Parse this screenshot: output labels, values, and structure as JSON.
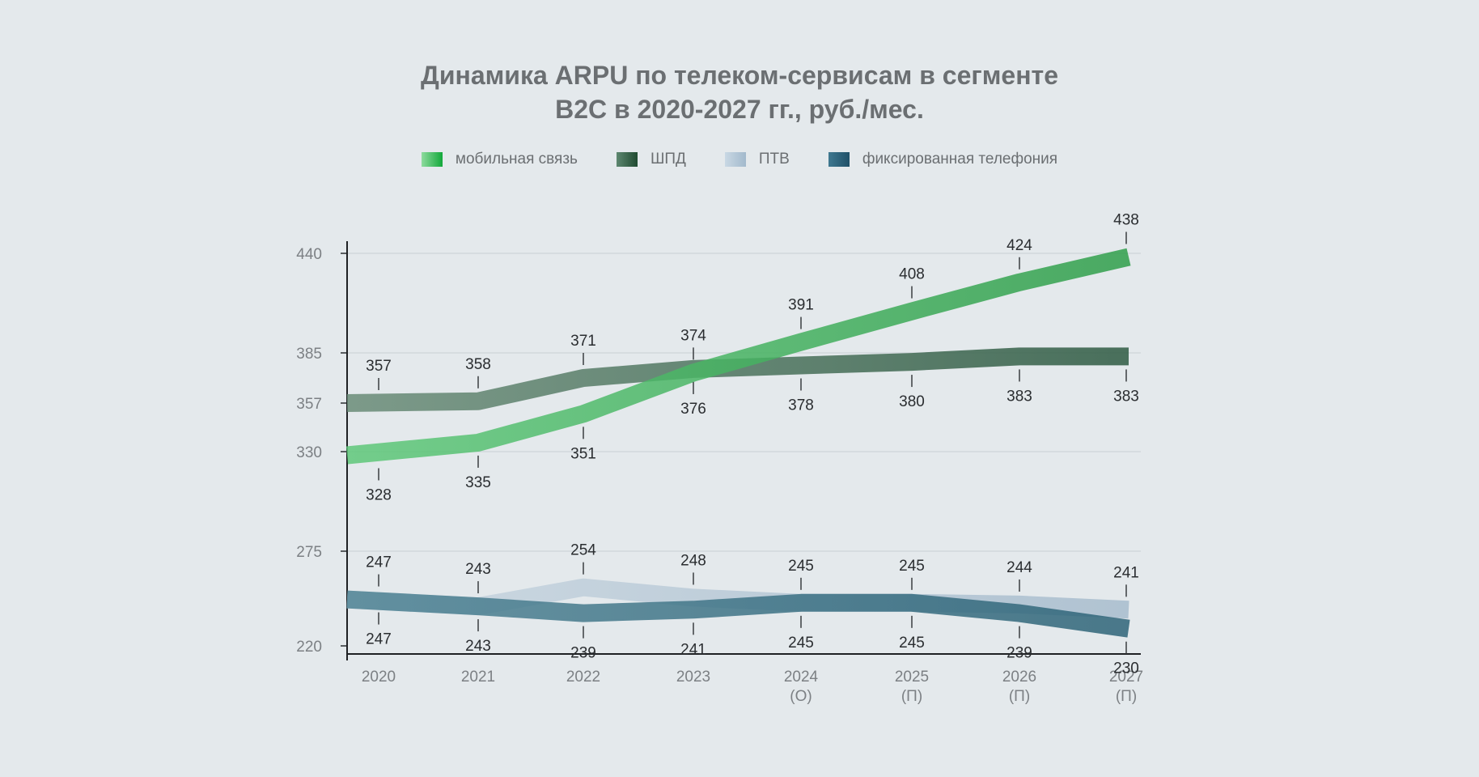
{
  "chart_data": {
    "type": "line",
    "title": [
      "Динамика ARPU по телеком-сервисам в сегменте",
      "B2C в 2020-2027 гг., руб./мес."
    ],
    "categories": [
      "2020",
      "2021",
      "2022",
      "2023",
      "2024",
      "2025",
      "2026",
      "2027"
    ],
    "category_sublabels": [
      "",
      "",
      "",
      "",
      "(О)",
      "(П)",
      "(П)",
      "(П)"
    ],
    "y_tick_labels": [
      "220",
      "275",
      "330",
      "357",
      "385",
      "440"
    ],
    "series": [
      {
        "name": "ПТВ",
        "color_start": "#c9d6e0",
        "color_end": "#a7bccd",
        "label_pos": "above",
        "values": [
          247,
          243,
          254,
          248,
          245,
          245,
          244,
          241
        ]
      },
      {
        "name": "фиксированная телефония",
        "color_start": "#4f8394",
        "color_end": "#2e6478",
        "label_pos": "below",
        "values": [
          247,
          243,
          239,
          241,
          245,
          245,
          239,
          230
        ]
      },
      {
        "name": "ШПД",
        "color_start": "#6a8c78",
        "color_end": "#2e5a42",
        "label_pos": "mixed",
        "values": [
          357,
          358,
          371,
          376,
          378,
          380,
          383,
          383
        ]
      },
      {
        "name": "мобильная связь",
        "color_start": "#5fc87a",
        "color_end": "#2f9e4a",
        "label_pos": "mixed",
        "values": [
          328,
          335,
          351,
          374,
          391,
          408,
          424,
          438
        ]
      }
    ],
    "legend": [
      {
        "label": "мобильная связь",
        "c1": "#8edb9e",
        "c2": "#12a83a"
      },
      {
        "label": "ШПД",
        "c1": "#5d8770",
        "c2": "#1f4a30"
      },
      {
        "label": "ПТВ",
        "c1": "#c9d8e4",
        "c2": "#a2b9cc"
      },
      {
        "label": "фиксированная телефония",
        "c1": "#3f7890",
        "c2": "#1f5068"
      }
    ],
    "legend_placement": "top-center"
  }
}
